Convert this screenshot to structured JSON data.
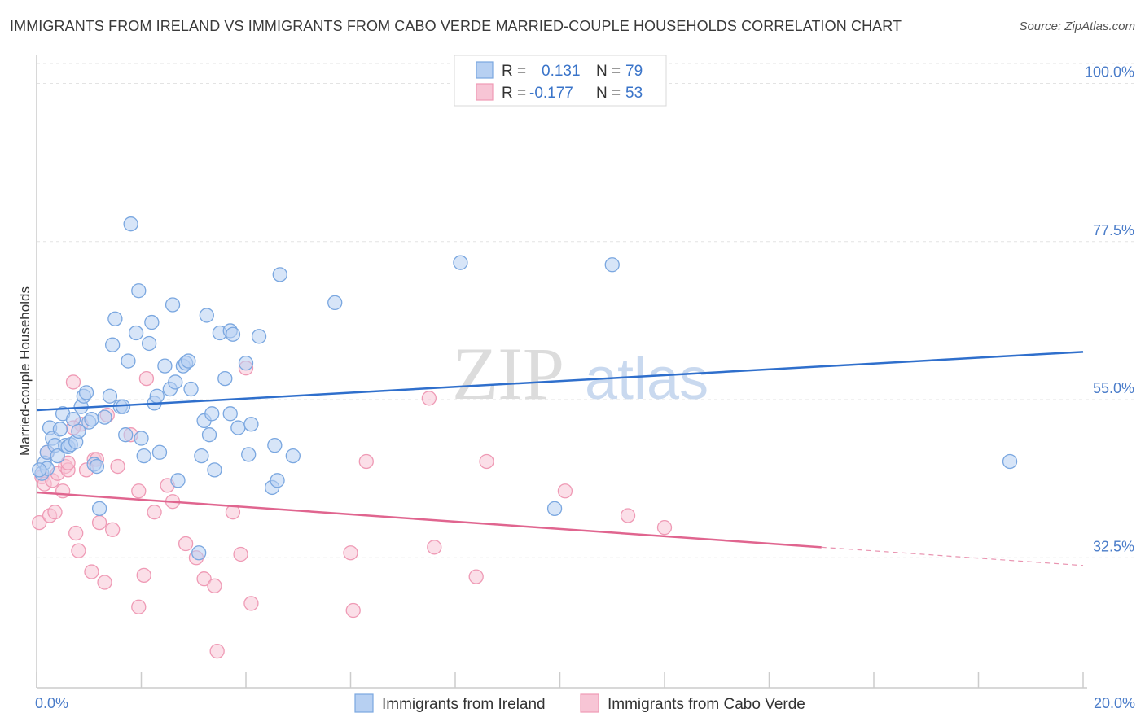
{
  "title": "IMMIGRANTS FROM IRELAND VS IMMIGRANTS FROM CABO VERDE MARRIED-COUPLE HOUSEHOLDS CORRELATION CHART",
  "source": "Source: ZipAtlas.com",
  "watermark": {
    "zip": "ZIP",
    "atlas": "atlas"
  },
  "legend": {
    "rows": [
      {
        "r_label": "R =",
        "r_value": "0.131",
        "n_label": "N =",
        "n_value": "79"
      },
      {
        "r_label": "R =",
        "r_value": "-0.177",
        "n_label": "N =",
        "n_value": "53"
      }
    ]
  },
  "chart_data": {
    "type": "scatter",
    "xlabel": "",
    "ylabel": "Married-couple Households",
    "xlim": [
      0,
      20
    ],
    "ylim": [
      14,
      104
    ],
    "x_tick_labels": [
      "0.0%",
      "20.0%"
    ],
    "y_ticks": [
      {
        "value": 100,
        "label": "100.0%"
      },
      {
        "value": 77.5,
        "label": "77.5%"
      },
      {
        "value": 55,
        "label": "55.0%"
      },
      {
        "value": 32.5,
        "label": "32.5%"
      }
    ],
    "grid": true,
    "legend_position": "top-center",
    "series": [
      {
        "name": "Immigrants from Ireland",
        "color": "#7aa7e0",
        "fill": "#b7d0f2",
        "line_color": "#2f6fcc",
        "trend": {
          "x": [
            0,
            20
          ],
          "y": [
            53.5,
            61.8
          ]
        },
        "points": [
          [
            0.1,
            44.5
          ],
          [
            0.15,
            46
          ],
          [
            0.2,
            45.2
          ],
          [
            0.2,
            47.5
          ],
          [
            0.25,
            51
          ],
          [
            0.3,
            49.5
          ],
          [
            0.35,
            48.5
          ],
          [
            0.4,
            47
          ],
          [
            0.45,
            50.8
          ],
          [
            0.5,
            53
          ],
          [
            0.55,
            48.5
          ],
          [
            0.6,
            48.3
          ],
          [
            0.65,
            48.6
          ],
          [
            0.7,
            52.2
          ],
          [
            0.75,
            49
          ],
          [
            0.8,
            50.5
          ],
          [
            0.85,
            54
          ],
          [
            0.9,
            55.5
          ],
          [
            0.95,
            56
          ],
          [
            1.0,
            51.8
          ],
          [
            1.05,
            52.2
          ],
          [
            1.1,
            45.8
          ],
          [
            1.15,
            45.5
          ],
          [
            1.2,
            39.5
          ],
          [
            1.3,
            52.5
          ],
          [
            1.4,
            55.5
          ],
          [
            1.45,
            62.8
          ],
          [
            1.5,
            66.5
          ],
          [
            1.6,
            54
          ],
          [
            1.65,
            54
          ],
          [
            1.7,
            50
          ],
          [
            1.75,
            60.5
          ],
          [
            1.8,
            80
          ],
          [
            1.9,
            64.5
          ],
          [
            1.95,
            70.5
          ],
          [
            2.0,
            49.5
          ],
          [
            2.05,
            47
          ],
          [
            2.15,
            63
          ],
          [
            2.2,
            66
          ],
          [
            2.25,
            54.5
          ],
          [
            2.3,
            55.5
          ],
          [
            2.35,
            47.5
          ],
          [
            2.45,
            59.8
          ],
          [
            2.55,
            56.5
          ],
          [
            2.6,
            68.5
          ],
          [
            2.65,
            57.5
          ],
          [
            2.7,
            43.5
          ],
          [
            2.8,
            59.8
          ],
          [
            2.85,
            60.2
          ],
          [
            2.9,
            60.5
          ],
          [
            2.95,
            56.5
          ],
          [
            3.1,
            33.2
          ],
          [
            3.15,
            47
          ],
          [
            3.2,
            52
          ],
          [
            3.25,
            67
          ],
          [
            3.3,
            50
          ],
          [
            3.35,
            53
          ],
          [
            3.4,
            45
          ],
          [
            3.5,
            64.5
          ],
          [
            3.6,
            58
          ],
          [
            3.7,
            53
          ],
          [
            3.7,
            64.8
          ],
          [
            3.75,
            64.3
          ],
          [
            3.85,
            51
          ],
          [
            4.0,
            60.2
          ],
          [
            4.05,
            47.2
          ],
          [
            4.1,
            51.5
          ],
          [
            4.25,
            64
          ],
          [
            4.5,
            42.5
          ],
          [
            4.55,
            48.5
          ],
          [
            4.6,
            43.5
          ],
          [
            4.65,
            72.8
          ],
          [
            4.9,
            47
          ],
          [
            5.7,
            68.8
          ],
          [
            8.1,
            74.5
          ],
          [
            9.9,
            39.5
          ],
          [
            11.0,
            74.2
          ],
          [
            18.6,
            46.2
          ],
          [
            0.05,
            45
          ]
        ]
      },
      {
        "name": "Immigrants from Cabo Verde",
        "color": "#ef9ab5",
        "fill": "#f7c5d5",
        "line_color": "#e0658f",
        "trend": {
          "x": [
            0,
            15
          ],
          "y": [
            41.8,
            34
          ]
        },
        "trend_dashed": {
          "x": [
            15,
            20
          ],
          "y": [
            34,
            31.4
          ]
        },
        "points": [
          [
            0.05,
            37.5
          ],
          [
            0.1,
            44
          ],
          [
            0.15,
            43
          ],
          [
            0.2,
            47.5
          ],
          [
            0.25,
            38.5
          ],
          [
            0.3,
            43.5
          ],
          [
            0.35,
            39
          ],
          [
            0.4,
            44.5
          ],
          [
            0.5,
            42
          ],
          [
            0.55,
            45.5
          ],
          [
            0.6,
            45
          ],
          [
            0.7,
            57.5
          ],
          [
            0.75,
            36
          ],
          [
            0.8,
            33.5
          ],
          [
            0.85,
            51.5
          ],
          [
            0.95,
            45
          ],
          [
            1.05,
            30.5
          ],
          [
            1.1,
            46.5
          ],
          [
            1.15,
            46.5
          ],
          [
            1.2,
            37.5
          ],
          [
            1.3,
            29
          ],
          [
            1.35,
            52.8
          ],
          [
            1.45,
            36.5
          ],
          [
            1.55,
            45.5
          ],
          [
            1.8,
            50
          ],
          [
            1.95,
            42
          ],
          [
            1.95,
            25.5
          ],
          [
            2.05,
            30
          ],
          [
            2.1,
            58
          ],
          [
            2.25,
            39
          ],
          [
            2.5,
            42.8
          ],
          [
            2.6,
            40.5
          ],
          [
            2.85,
            34.5
          ],
          [
            3.05,
            32.5
          ],
          [
            3.2,
            29.5
          ],
          [
            3.4,
            28.5
          ],
          [
            3.45,
            19.2
          ],
          [
            3.75,
            39
          ],
          [
            3.9,
            33
          ],
          [
            4.0,
            59.5
          ],
          [
            4.1,
            26
          ],
          [
            6.0,
            33.2
          ],
          [
            6.05,
            25
          ],
          [
            6.3,
            46.2
          ],
          [
            7.5,
            55.2
          ],
          [
            7.6,
            34
          ],
          [
            8.4,
            29.8
          ],
          [
            8.6,
            46.2
          ],
          [
            10.1,
            42
          ],
          [
            11.3,
            38.5
          ],
          [
            12.0,
            36.8
          ],
          [
            0.7,
            51
          ],
          [
            0.6,
            46
          ]
        ]
      }
    ]
  },
  "bottom_legend": {
    "items": [
      {
        "label": "Immigrants from Ireland"
      },
      {
        "label": "Immigrants from Cabo Verde"
      }
    ]
  }
}
